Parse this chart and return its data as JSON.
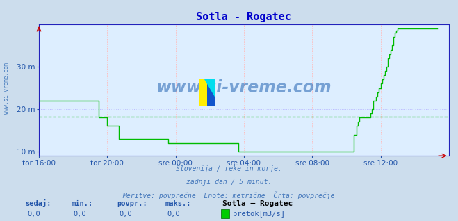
{
  "title": "Sotla - Rogatec",
  "title_color": "#0000cc",
  "title_fontsize": 11,
  "bg_color": "#ccdded",
  "plot_bg_color": "#ddeeff",
  "grid_color_v": "#ffbbbb",
  "grid_color_h": "#bbbbff",
  "avg_line_color": "#00bb00",
  "line_color": "#00bb00",
  "axis_color": "#2222bb",
  "tick_color": "#2255aa",
  "xlim": [
    0,
    288
  ],
  "ylim": [
    9,
    40
  ],
  "yticks": [
    10,
    20,
    30
  ],
  "ytick_labels": [
    "10 m",
    "20 m",
    "30 m"
  ],
  "xtick_positions": [
    0,
    48,
    96,
    144,
    192,
    240
  ],
  "xtick_labels": [
    "tor 16:00",
    "tor 20:00",
    "sre 00:00",
    "sre 04:00",
    "sre 08:00",
    "sre 12:00"
  ],
  "watermark": "www.si-vreme.com",
  "watermark_color": "#1155aa",
  "side_label": "www.si-vreme.com",
  "footer_lines": [
    "Slovenija / reke in morje.",
    "zadnji dan / 5 minut.",
    "Meritve: povprečne  Enote: metrične  Črta: povprečje"
  ],
  "footer_color": "#4477bb",
  "bottom_labels": [
    "sedaj:",
    "min.:",
    "povpr.:",
    "maks.:"
  ],
  "bottom_values": [
    "0,0",
    "0,0",
    "0,0",
    "0,0"
  ],
  "bottom_legend_title": "Sotla – Rogatec",
  "bottom_legend_item": "pretok[m3/s]",
  "bottom_legend_color": "#00cc00",
  "average_value": 18.2,
  "y_values": [
    22.0,
    22.0,
    22.0,
    22.0,
    22.0,
    22.0,
    22.0,
    22.0,
    22.0,
    22.0,
    22.0,
    22.0,
    22.0,
    22.0,
    22.0,
    22.0,
    22.0,
    22.0,
    22.0,
    22.0,
    22.0,
    22.0,
    22.0,
    22.0,
    22.0,
    22.0,
    22.0,
    22.0,
    22.0,
    22.0,
    22.0,
    22.0,
    22.0,
    22.0,
    22.0,
    22.0,
    22.0,
    22.0,
    22.0,
    22.0,
    22.0,
    22.0,
    18.0,
    18.0,
    18.0,
    18.0,
    18.0,
    18.0,
    16.0,
    16.0,
    16.0,
    16.0,
    16.0,
    16.0,
    16.0,
    16.0,
    13.0,
    13.0,
    13.0,
    13.0,
    13.0,
    13.0,
    13.0,
    13.0,
    13.0,
    13.0,
    13.0,
    13.0,
    13.0,
    13.0,
    13.0,
    13.0,
    13.0,
    13.0,
    13.0,
    13.0,
    13.0,
    13.0,
    13.0,
    13.0,
    13.0,
    13.0,
    13.0,
    13.0,
    13.0,
    13.0,
    13.0,
    13.0,
    13.0,
    13.0,
    13.0,
    12.0,
    12.0,
    12.0,
    12.0,
    12.0,
    12.0,
    12.0,
    12.0,
    12.0,
    12.0,
    12.0,
    12.0,
    12.0,
    12.0,
    12.0,
    12.0,
    12.0,
    12.0,
    12.0,
    12.0,
    12.0,
    12.0,
    12.0,
    12.0,
    12.0,
    12.0,
    12.0,
    12.0,
    12.0,
    12.0,
    12.0,
    12.0,
    12.0,
    12.0,
    12.0,
    12.0,
    12.0,
    12.0,
    12.0,
    12.0,
    12.0,
    12.0,
    12.0,
    12.0,
    12.0,
    12.0,
    12.0,
    12.0,
    12.0,
    10.0,
    10.0,
    10.0,
    10.0,
    10.0,
    10.0,
    10.0,
    10.0,
    10.0,
    10.0,
    10.0,
    10.0,
    10.0,
    10.0,
    10.0,
    10.0,
    10.0,
    10.0,
    10.0,
    10.0,
    10.0,
    10.0,
    10.0,
    10.0,
    10.0,
    10.0,
    10.0,
    10.0,
    10.0,
    10.0,
    10.0,
    10.0,
    10.0,
    10.0,
    10.0,
    10.0,
    10.0,
    10.0,
    10.0,
    10.0,
    10.0,
    10.0,
    10.0,
    10.0,
    10.0,
    10.0,
    10.0,
    10.0,
    10.0,
    10.0,
    10.0,
    10.0,
    10.0,
    10.0,
    10.0,
    10.0,
    10.0,
    10.0,
    10.0,
    10.0,
    10.0,
    10.0,
    10.0,
    10.0,
    10.0,
    10.0,
    10.0,
    10.0,
    10.0,
    10.0,
    10.0,
    10.0,
    10.0,
    10.0,
    10.0,
    10.0,
    10.0,
    10.0,
    10.0,
    10.0,
    10.0,
    14.0,
    14.0,
    16.0,
    17.0,
    18.0,
    18.0,
    18.0,
    18.0,
    18.0,
    18.0,
    18.0,
    18.0,
    19.0,
    20.0,
    22.0,
    22.0,
    23.0,
    24.0,
    25.0,
    26.0,
    27.0,
    28.0,
    29.0,
    30.0,
    32.0,
    33.0,
    34.0,
    35.0,
    37.0,
    38.0,
    38.5,
    39.0,
    39.0,
    39.0,
    39.0,
    39.0,
    39.0,
    39.0,
    39.0,
    39.0,
    39.0,
    39.0,
    39.0,
    39.0,
    39.0,
    39.0,
    39.0,
    39.0,
    39.0,
    39.0,
    39.0,
    39.0,
    39.0,
    39.0,
    39.0,
    39.0,
    39.0,
    39.0,
    39.0,
    39.0
  ]
}
